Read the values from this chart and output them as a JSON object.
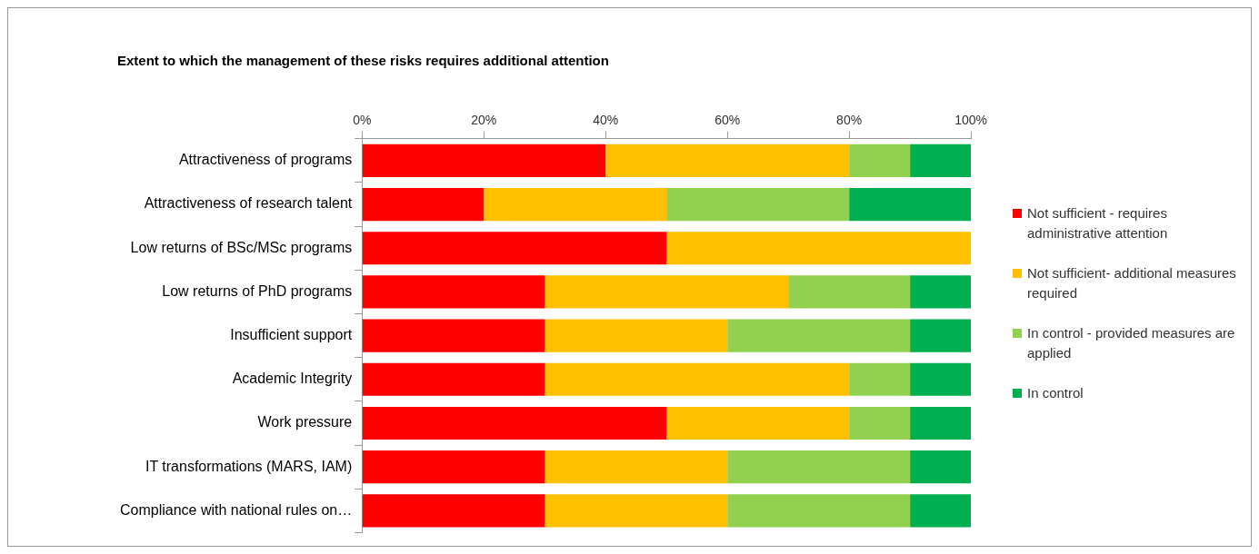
{
  "chart_data": {
    "type": "bar",
    "orientation": "horizontal",
    "stacked": true,
    "title": "Extent to which the management of these risks requires additional attention",
    "categories": [
      "Attractiveness of programs",
      "Attractiveness of research talent",
      "Low returns of BSc/MSc programs",
      "Low returns of PhD programs",
      "Insufficient support",
      "Academic Integrity",
      "Work pressure",
      "IT transformations (MARS, IAM)",
      "Compliance with national rules on…"
    ],
    "series": [
      {
        "name": "Not sufficient - requires administrative attention",
        "color": "#ff0000",
        "values": [
          40,
          20,
          50,
          30,
          30,
          30,
          50,
          30,
          30
        ]
      },
      {
        "name": "Not sufficient- additional measures required",
        "color": "#ffc000",
        "values": [
          40,
          30,
          50,
          40,
          30,
          50,
          30,
          30,
          30
        ]
      },
      {
        "name": "In control - provided measures are applied",
        "color": "#92d050",
        "values": [
          10,
          30,
          0,
          20,
          30,
          10,
          10,
          30,
          30
        ]
      },
      {
        "name": "In control",
        "color": "#00b050",
        "values": [
          10,
          20,
          0,
          10,
          10,
          10,
          10,
          10,
          10
        ]
      }
    ],
    "xlim": [
      0,
      100
    ],
    "xticks": [
      {
        "value": 0,
        "label": "0%"
      },
      {
        "value": 20,
        "label": "20%"
      },
      {
        "value": 40,
        "label": "40%"
      },
      {
        "value": 60,
        "label": "60%"
      },
      {
        "value": 80,
        "label": "80%"
      },
      {
        "value": 100,
        "label": "100%"
      }
    ],
    "grid": false,
    "legend": "right"
  }
}
